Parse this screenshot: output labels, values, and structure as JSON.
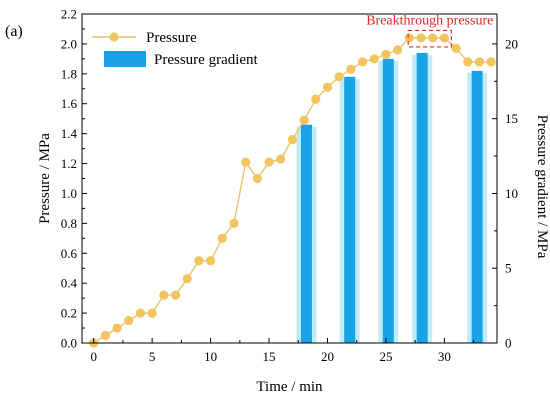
{
  "panel_label": "(a)",
  "colors": {
    "pressure": "#f2c45e",
    "pressure_line": "#e8c46e",
    "gradient": "#1aa2e6",
    "gradient_halo": "#a9e6f6",
    "annotation": "#d92a2a"
  },
  "chart_data": {
    "type": "line",
    "xlabel": "Time / min",
    "ylabel_left": "Pressure / MPa",
    "ylabel_right": "Pressure gradient / MPa",
    "xlim": [
      -1,
      34.5
    ],
    "ylim_left": [
      0,
      2.2
    ],
    "ylim_right": [
      0,
      22
    ],
    "x_ticks": [
      0,
      5,
      10,
      15,
      20,
      25,
      30
    ],
    "y_left_ticks": [
      0.0,
      0.2,
      0.4,
      0.6,
      0.8,
      1.0,
      1.2,
      1.4,
      1.6,
      1.8,
      2.0,
      2.2
    ],
    "y_left_tick_labels": [
      "0.0",
      "0.2",
      "0.4",
      "0.6",
      "0.8",
      "1.0",
      "1.2",
      "1.4",
      "1.6",
      "1.8",
      "2.0",
      "2.2"
    ],
    "y_right_ticks": [
      0,
      5,
      10,
      15,
      20
    ],
    "y_right_tick_labels": [
      "0",
      "5",
      "10",
      "15",
      "20"
    ],
    "legend_position": "top-left",
    "series": [
      {
        "name": "Pressure",
        "kind": "line+marker",
        "axis": "left",
        "x": [
          0,
          1,
          2,
          3,
          4,
          5,
          6,
          7,
          8,
          9,
          10,
          11,
          12,
          13,
          14,
          15,
          16,
          17,
          18,
          19,
          20,
          21,
          22,
          23,
          24,
          25,
          26,
          27,
          28,
          29,
          30,
          31,
          32,
          33,
          34
        ],
        "y": [
          0.0,
          0.05,
          0.1,
          0.15,
          0.2,
          0.2,
          0.32,
          0.32,
          0.43,
          0.55,
          0.55,
          0.7,
          0.8,
          1.21,
          1.1,
          1.21,
          1.23,
          1.36,
          1.49,
          1.63,
          1.71,
          1.78,
          1.83,
          1.88,
          1.9,
          1.93,
          1.96,
          2.04,
          2.04,
          2.04,
          2.04,
          1.97,
          1.88,
          1.88,
          1.88
        ]
      },
      {
        "name": "Pressure gradient",
        "kind": "bar",
        "axis": "right",
        "x": [
          18.2,
          21.9,
          25.2,
          28.1,
          32.8
        ],
        "y": [
          14.6,
          17.8,
          19.0,
          19.4,
          18.2
        ]
      }
    ],
    "annotations": [
      {
        "text": "Breakthrough pressure",
        "x_range": [
          26.9,
          30.6
        ],
        "y_range": [
          1.98,
          2.09
        ]
      }
    ]
  }
}
